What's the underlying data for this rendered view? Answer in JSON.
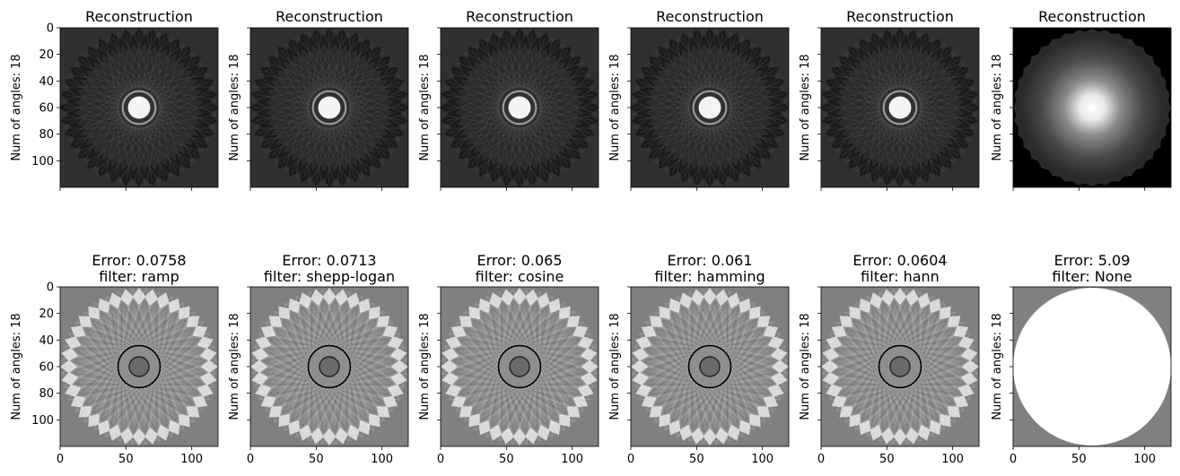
{
  "figure": {
    "background": "#ffffff"
  },
  "chart_data": [
    {
      "type": "heatmap",
      "row": 0,
      "variant": "recon_ramp",
      "title": "Reconstruction",
      "ylabel": "Num of angles: 18",
      "xlim": [
        0,
        120
      ],
      "ylim": [
        120,
        0
      ],
      "yticks": [
        0,
        20,
        40,
        60,
        80,
        100
      ],
      "xticks": [
        0,
        50,
        100
      ],
      "show_xtick_labels": false,
      "show_ytick_labels": true
    },
    {
      "type": "heatmap",
      "row": 0,
      "variant": "recon_shepp",
      "title": "Reconstruction",
      "ylabel": "Num of angles: 18",
      "xlim": [
        0,
        120
      ],
      "ylim": [
        120,
        0
      ],
      "yticks": [
        0,
        20,
        40,
        60,
        80,
        100
      ],
      "xticks": [
        0,
        50,
        100
      ],
      "show_xtick_labels": false,
      "show_ytick_labels": false
    },
    {
      "type": "heatmap",
      "row": 0,
      "variant": "recon_cosine",
      "title": "Reconstruction",
      "ylabel": "Num of angles: 18",
      "xlim": [
        0,
        120
      ],
      "ylim": [
        120,
        0
      ],
      "yticks": [
        0,
        20,
        40,
        60,
        80,
        100
      ],
      "xticks": [
        0,
        50,
        100
      ],
      "show_xtick_labels": false,
      "show_ytick_labels": false
    },
    {
      "type": "heatmap",
      "row": 0,
      "variant": "recon_hamming",
      "title": "Reconstruction",
      "ylabel": "Num of angles: 18",
      "xlim": [
        0,
        120
      ],
      "ylim": [
        120,
        0
      ],
      "yticks": [
        0,
        20,
        40,
        60,
        80,
        100
      ],
      "xticks": [
        0,
        50,
        100
      ],
      "show_xtick_labels": false,
      "show_ytick_labels": false
    },
    {
      "type": "heatmap",
      "row": 0,
      "variant": "recon_hann",
      "title": "Reconstruction",
      "ylabel": "Num of angles: 18",
      "xlim": [
        0,
        120
      ],
      "ylim": [
        120,
        0
      ],
      "yticks": [
        0,
        20,
        40,
        60,
        80,
        100
      ],
      "xticks": [
        0,
        50,
        100
      ],
      "show_xtick_labels": false,
      "show_ytick_labels": false
    },
    {
      "type": "heatmap",
      "row": 0,
      "variant": "recon_none",
      "title": "Reconstruction",
      "ylabel": "Num of angles: 18",
      "xlim": [
        0,
        120
      ],
      "ylim": [
        120,
        0
      ],
      "yticks": [
        0,
        20,
        40,
        60,
        80,
        100
      ],
      "xticks": [
        0,
        50,
        100
      ],
      "show_xtick_labels": false,
      "show_ytick_labels": false
    },
    {
      "type": "heatmap",
      "row": 1,
      "variant": "err_ramp",
      "title": "Error: 0.0758",
      "subtitle": "filter: ramp",
      "error": 0.0758,
      "filter": "ramp",
      "ylabel": "Num of angles: 18",
      "xlim": [
        0,
        120
      ],
      "ylim": [
        120,
        0
      ],
      "yticks": [
        0,
        20,
        40,
        60,
        80,
        100
      ],
      "xticks": [
        0,
        50,
        100
      ],
      "show_xtick_labels": true,
      "show_ytick_labels": true
    },
    {
      "type": "heatmap",
      "row": 1,
      "variant": "err_shepp",
      "title": "Error: 0.0713",
      "subtitle": "filter: shepp-logan",
      "error": 0.0713,
      "filter": "shepp-logan",
      "ylabel": "Num of angles: 18",
      "xlim": [
        0,
        120
      ],
      "ylim": [
        120,
        0
      ],
      "yticks": [
        0,
        20,
        40,
        60,
        80,
        100
      ],
      "xticks": [
        0,
        50,
        100
      ],
      "show_xtick_labels": true,
      "show_ytick_labels": false
    },
    {
      "type": "heatmap",
      "row": 1,
      "variant": "err_cosine",
      "title": "Error: 0.065",
      "subtitle": "filter: cosine",
      "error": 0.065,
      "filter": "cosine",
      "ylabel": "Num of angles: 18",
      "xlim": [
        0,
        120
      ],
      "ylim": [
        120,
        0
      ],
      "yticks": [
        0,
        20,
        40,
        60,
        80,
        100
      ],
      "xticks": [
        0,
        50,
        100
      ],
      "show_xtick_labels": true,
      "show_ytick_labels": false
    },
    {
      "type": "heatmap",
      "row": 1,
      "variant": "err_hamming",
      "title": "Error: 0.061",
      "subtitle": "filter: hamming",
      "error": 0.061,
      "filter": "hamming",
      "ylabel": "Num of angles: 18",
      "xlim": [
        0,
        120
      ],
      "ylim": [
        120,
        0
      ],
      "yticks": [
        0,
        20,
        40,
        60,
        80,
        100
      ],
      "xticks": [
        0,
        50,
        100
      ],
      "show_xtick_labels": true,
      "show_ytick_labels": false
    },
    {
      "type": "heatmap",
      "row": 1,
      "variant": "err_hann",
      "title": "Error: 0.0604",
      "subtitle": "filter: hann",
      "error": 0.0604,
      "filter": "hann",
      "ylabel": "Num of angles: 18",
      "xlim": [
        0,
        120
      ],
      "ylim": [
        120,
        0
      ],
      "yticks": [
        0,
        20,
        40,
        60,
        80,
        100
      ],
      "xticks": [
        0,
        50,
        100
      ],
      "show_xtick_labels": true,
      "show_ytick_labels": false
    },
    {
      "type": "heatmap",
      "row": 1,
      "variant": "err_none",
      "title": "Error: 5.09",
      "subtitle": "filter: None",
      "error": 5.09,
      "filter": "None",
      "ylabel": "Num of angles: 18",
      "xlim": [
        0,
        120
      ],
      "ylim": [
        120,
        0
      ],
      "yticks": [
        0,
        20,
        40,
        60,
        80,
        100
      ],
      "xticks": [
        0,
        50,
        100
      ],
      "show_xtick_labels": true,
      "show_ytick_labels": false
    }
  ]
}
